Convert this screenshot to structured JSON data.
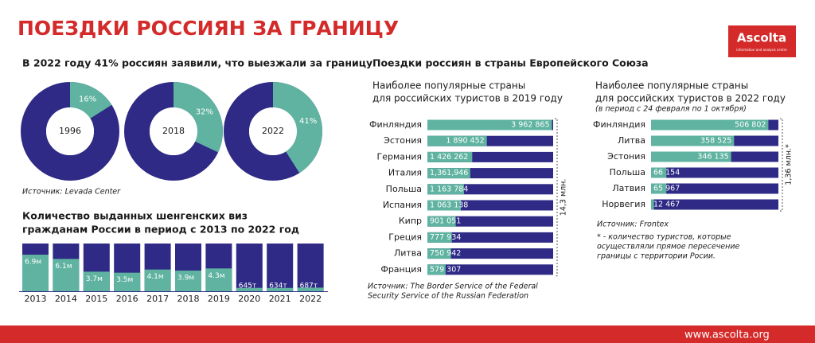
{
  "title": "ПОЕЗДКИ РОССИЯН ЗА ГРАНИЦУ",
  "logo": {
    "name": "Ascolta",
    "tagline": "information and analysis centre"
  },
  "footer_url": "www.ascolta.org",
  "chart_data": [
    {
      "type": "donut",
      "title": "В 2022 году 41% россиян заявили, что выезжали за границу",
      "categories": [
        "1996",
        "2018",
        "2022"
      ],
      "values": [
        16,
        32,
        41
      ],
      "value_labels": [
        "16%",
        "32%",
        "41%"
      ],
      "total": 100,
      "color": "#5fb3a0",
      "rest_color": "#2e2a86",
      "source": "Источник: Levada Center"
    },
    {
      "type": "bar",
      "title": [
        "Количество выданных шенгенских виз",
        "гражданам России в период с 2013 по 2022 год"
      ],
      "categories": [
        "2013",
        "2014",
        "2015",
        "2016",
        "2017",
        "2018",
        "2019",
        "2020",
        "2021",
        "2022"
      ],
      "values": [
        6.9,
        6.1,
        3.7,
        3.5,
        4.1,
        3.9,
        4.3,
        0.645,
        0.634,
        0.687
      ],
      "value_labels": [
        "6.9м",
        "6.1м",
        "3.7м",
        "3.5м",
        "4.1м",
        "3.9м",
        "4.3м",
        "645т",
        "634т",
        "687т"
      ],
      "ylim": [
        0,
        9
      ],
      "color": "#5fb3a0",
      "rest_color": "#2e2a86"
    },
    {
      "type": "hbar",
      "title": "Поездки россиян в страны Европейского Союза",
      "subtitle": [
        "Наиболее популярные страны",
        "для российских туристов в 2019 году"
      ],
      "categories": [
        "Финляндия",
        "Эстония",
        "Германия",
        "Италия",
        "Польша",
        "Испания",
        "Кипр",
        "Греция",
        "Литва",
        "Франция"
      ],
      "values": [
        3962865,
        1890452,
        1426262,
        1361946,
        1163784,
        1063138,
        901051,
        777934,
        750942,
        579307
      ],
      "value_labels": [
        "3 962 865",
        "1 890 452",
        "1 426 262",
        "1,361,946",
        "1 163 784",
        "1 063 138",
        "901 051",
        "777 934",
        "750 942",
        "579 307"
      ],
      "xlim": [
        0,
        4000000
      ],
      "color": "#5fb3a0",
      "rest_color": "#2e2a86",
      "annotation": "14,3 млн.",
      "source": [
        "Источник: The Border Service of the Federal",
        "Security Service of the Russian Federation"
      ]
    },
    {
      "type": "hbar",
      "subtitle": [
        "Наиболее популярные страны",
        "для российских туристов в 2022 году"
      ],
      "note": "(в период с 24 февраля по 1 октября)",
      "categories": [
        "Финляндия",
        "Литва",
        "Эстония",
        "Польша",
        "Латвия",
        "Норвегия"
      ],
      "values": [
        506802,
        358525,
        346135,
        66154,
        65967,
        12467
      ],
      "value_labels": [
        "506 802",
        "358 525",
        "346 135",
        "66 154",
        "65 967",
        "12 467"
      ],
      "xlim": [
        0,
        550000
      ],
      "color": "#5fb3a0",
      "rest_color": "#2e2a86",
      "annotation": "1,36 млн.*",
      "source": "Источник: Frontex",
      "footnote": [
        "* - количество туристов, которые",
        "осуществляли прямое пересечение",
        "границы с территории Росии."
      ]
    }
  ]
}
